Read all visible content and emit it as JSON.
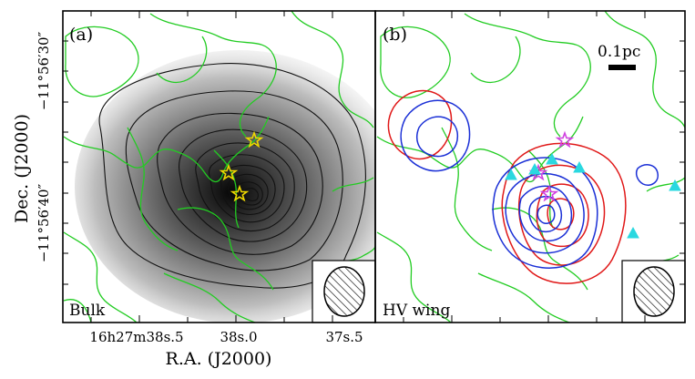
{
  "figure": {
    "ylabel": "Dec. (J2000)",
    "xlabel": "R.A. (J2000)",
    "yticks": [
      "−11°56′30″",
      "−11°56′40″"
    ],
    "xticks": [
      "16h27m38s.5",
      "38s.0",
      "37s.5"
    ]
  },
  "panels": [
    {
      "id": "a",
      "label": "(a)",
      "caption": "Bulk"
    },
    {
      "id": "b",
      "label": "(b)",
      "caption": "HV wing",
      "scalebar_label": "0.1pc"
    }
  ],
  "colors": {
    "green_contour": "#22cc22",
    "black_contour": "#111111",
    "red_contour": "#e01818",
    "blue_contour": "#1a2fd6",
    "yellow_star": "#f0d800",
    "magenta_star": "#d040e0",
    "cyan_triangle": "#2ad8e0"
  }
}
